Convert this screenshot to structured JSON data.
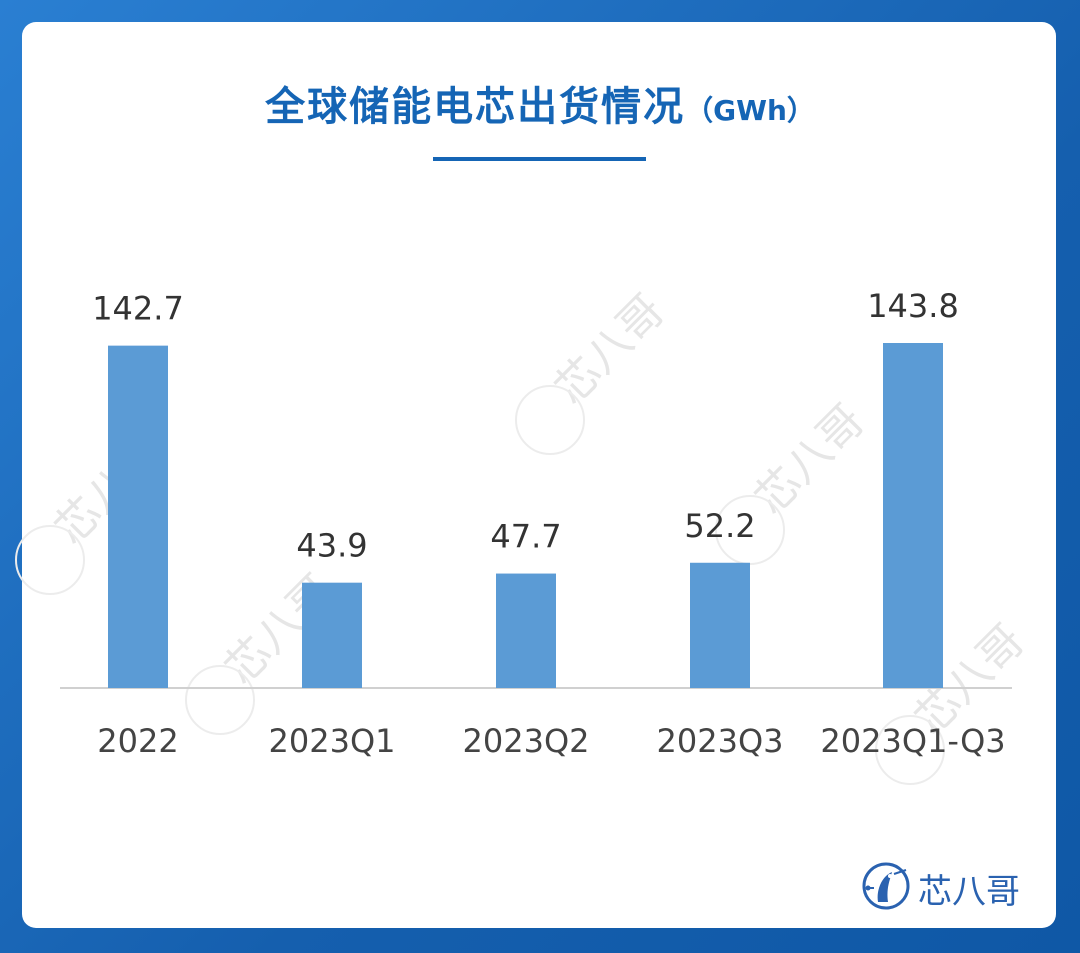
{
  "title": {
    "main": "全球储能电芯出货情况",
    "unit": "（GWh）"
  },
  "brand": {
    "logo_text": "芯八哥",
    "watermark_text": "芯八哥"
  },
  "colors": {
    "accent": "#1565b5",
    "bar": "#5b9bd5",
    "axis": "#d0d0d0",
    "label": "#333333"
  },
  "chart_data": {
    "type": "bar",
    "title": "全球储能电芯出货情况（GWh）",
    "categories": [
      "2022",
      "2023Q1",
      "2023Q2",
      "2023Q3",
      "2023Q1-Q3"
    ],
    "values": [
      142.7,
      43.9,
      47.7,
      52.2,
      143.8
    ],
    "data_labels": [
      "142.7",
      "43.9",
      "47.7",
      "52.2",
      "143.8"
    ],
    "xlabel": "",
    "ylabel": "",
    "grid": false,
    "legend": "none"
  }
}
